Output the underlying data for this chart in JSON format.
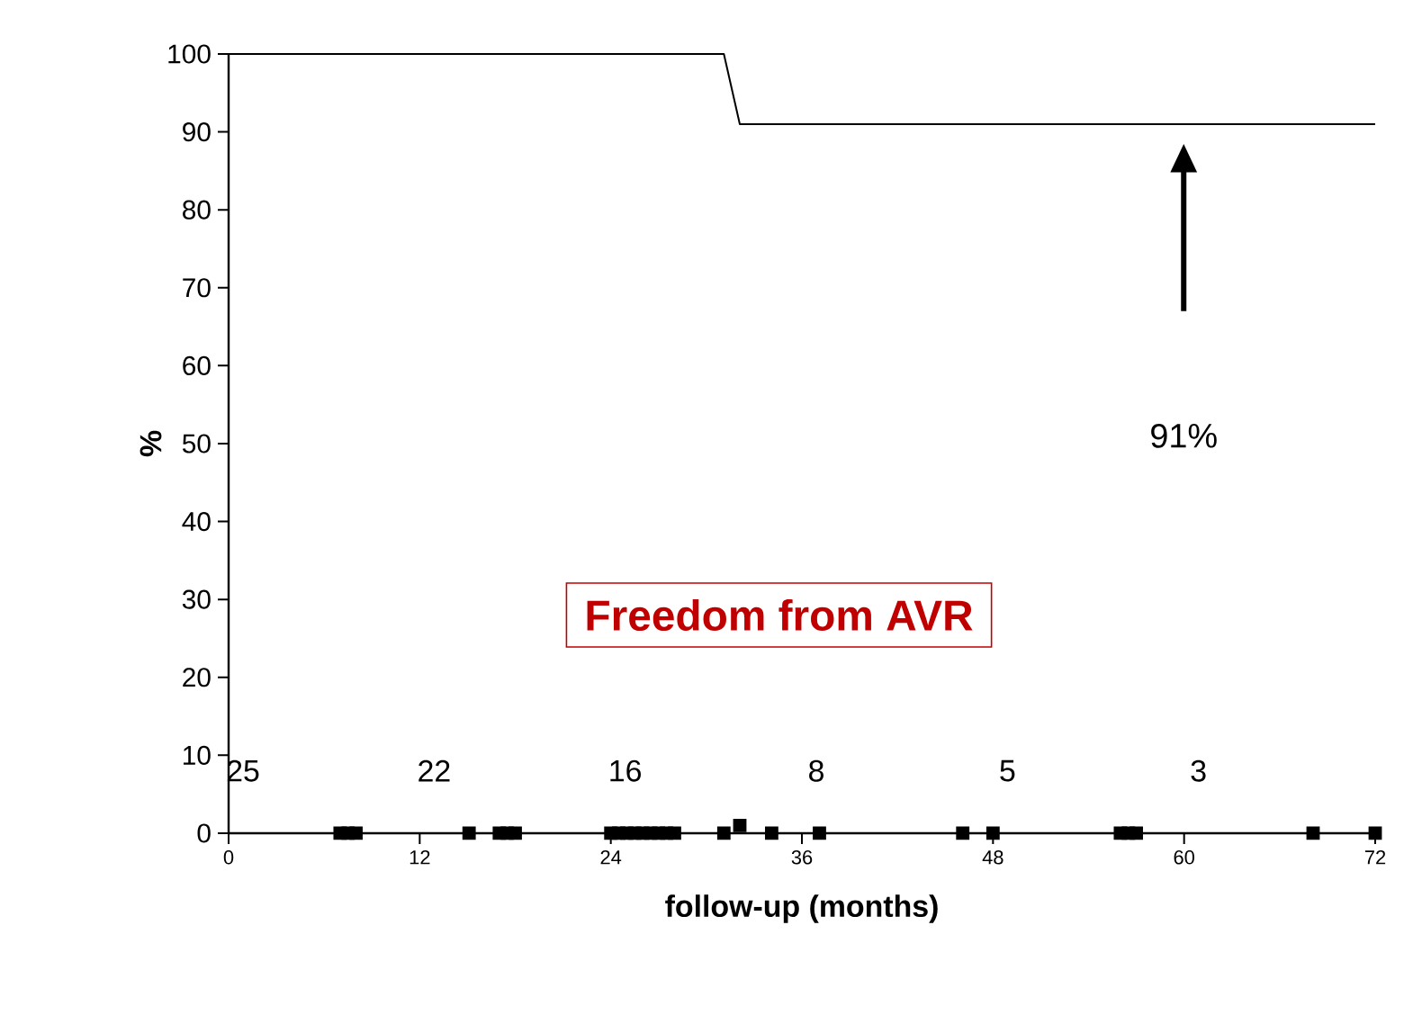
{
  "chart_data": {
    "type": "line",
    "xlabel": "follow-up (months)",
    "ylabel": "%",
    "xlim": [
      0,
      72
    ],
    "xticks": [
      0,
      12,
      24,
      36,
      48,
      60,
      72
    ],
    "ylim": [
      0,
      100
    ],
    "yticks": [
      0,
      10,
      20,
      30,
      40,
      50,
      60,
      70,
      80,
      90,
      100
    ],
    "series": [
      {
        "color": "#000000",
        "x": [
          0,
          31.1,
          32.1,
          72
        ],
        "values": [
          100,
          100,
          91,
          91
        ]
      },
      {
        "type": "scatter",
        "marker": "square",
        "color": "#000000",
        "x": [
          7,
          7.5,
          8,
          15.1,
          17,
          17.5,
          18,
          24,
          24.5,
          25,
          25.5,
          26,
          26.5,
          27,
          27.5,
          28,
          31.1,
          32.1,
          34.1,
          37.1,
          46.1,
          48,
          56,
          56.5,
          57,
          68.1,
          72
        ],
        "values": [
          0,
          0,
          0,
          0,
          0,
          0,
          0,
          0,
          0,
          0,
          0,
          0,
          0,
          0,
          0,
          0,
          0,
          1,
          0,
          0,
          0,
          0,
          0,
          0,
          0,
          0,
          0
        ]
      }
    ],
    "annotations": [
      "Freedom from AVR",
      "91%",
      "25",
      "22",
      "16",
      "8",
      "5",
      "3"
    ]
  }
}
